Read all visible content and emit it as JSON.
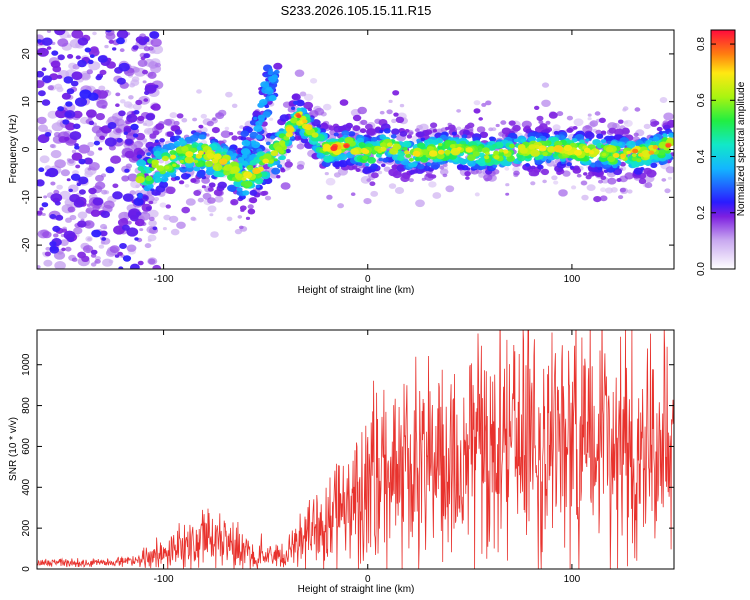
{
  "title": "S233.2026.105.15.11.R15",
  "chart_data": [
    {
      "type": "heatmap",
      "xlabel": "Height of straight line (km)",
      "ylabel": "Frequency (Hz)",
      "xlim": [
        -162,
        150
      ],
      "ylim": [
        -25,
        25
      ],
      "xticks": [
        -100,
        0,
        100
      ],
      "yticks": [
        -20,
        -10,
        0,
        10,
        20
      ],
      "colorbar": {
        "label": "Normalized spectral amplitude",
        "range": [
          0.0,
          0.85
        ],
        "ticks": [
          "0.0",
          "0.2",
          "0.4",
          "0.6",
          "0.8"
        ]
      },
      "ridge": {
        "x": [
          -112,
          -100,
          -90,
          -80,
          -70,
          -60,
          -50,
          -40,
          -35,
          -30,
          -25,
          -20,
          -15,
          -10,
          0,
          10,
          20,
          40,
          60,
          80,
          100,
          120,
          135,
          148
        ],
        "y": [
          -6,
          -3,
          -1,
          -1,
          -3,
          -6,
          -3,
          2,
          7,
          5,
          2,
          0,
          0,
          1,
          -1,
          1,
          -1,
          0,
          -1,
          0,
          0,
          -1,
          -1,
          1
        ]
      },
      "grid": false
    },
    {
      "type": "line",
      "xlabel": "Height of straight line (km)",
      "ylabel": "SNR (10 * v/v)",
      "xlim": [
        -162,
        150
      ],
      "ylim": [
        0,
        1170
      ],
      "xticks": [
        -100,
        0,
        100
      ],
      "yticks": [
        0,
        200,
        400,
        600,
        800,
        1000
      ],
      "color": "#e8322d",
      "envelope": {
        "x": [
          -162,
          -130,
          -110,
          -100,
          -90,
          -80,
          -70,
          -60,
          -50,
          -40,
          -30,
          -20,
          -10,
          0,
          10,
          20,
          30,
          40,
          50,
          60,
          70,
          80,
          90,
          100,
          110,
          120,
          130,
          140,
          150
        ],
        "y": [
          30,
          30,
          45,
          70,
          110,
          160,
          130,
          85,
          60,
          60,
          180,
          230,
          320,
          380,
          430,
          470,
          510,
          540,
          560,
          570,
          580,
          580,
          570,
          560,
          560,
          560,
          570,
          580,
          600
        ]
      },
      "grid": false
    }
  ]
}
